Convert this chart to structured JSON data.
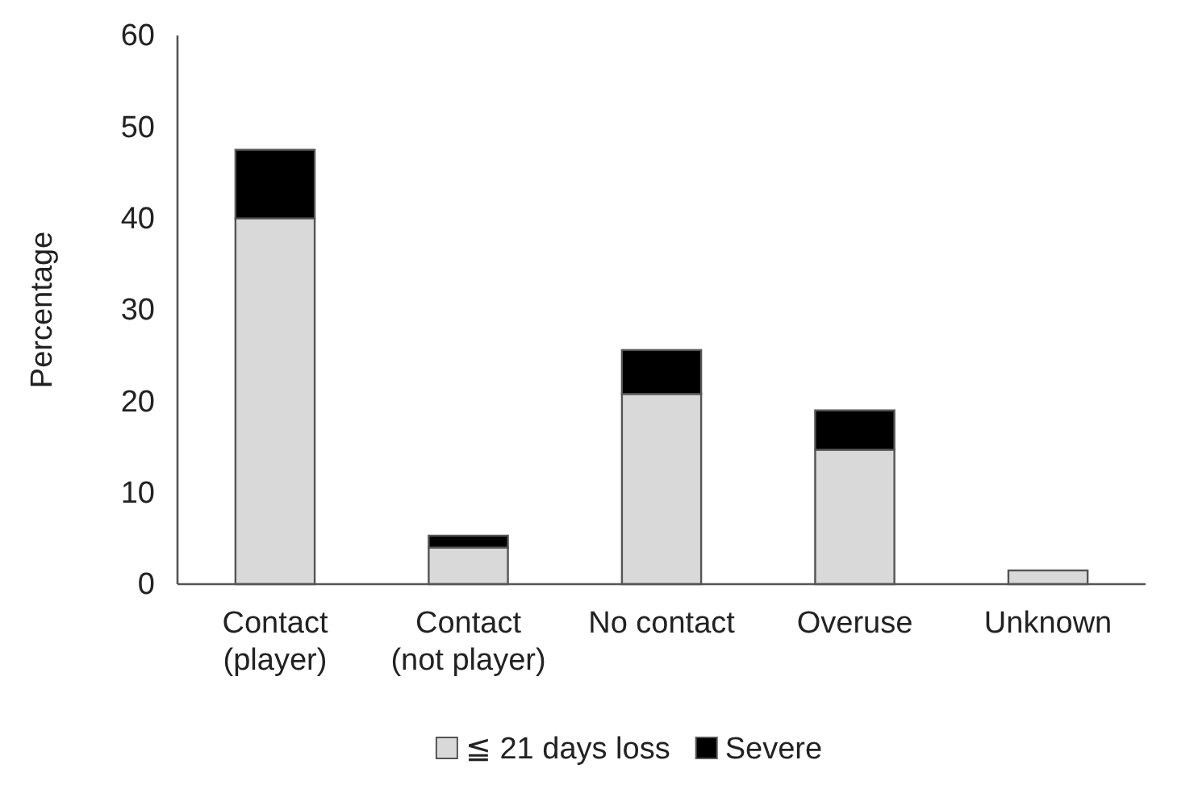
{
  "chart_data": {
    "type": "bar",
    "stacked": true,
    "ylabel": "Percentage",
    "categories": [
      "Contact\n(player)",
      "Contact\n(not player)",
      "No contact",
      "Overuse",
      "Unknown"
    ],
    "series": [
      {
        "name": "≦ 21 days loss",
        "color": "#d9d9d9",
        "values": [
          40,
          4,
          20.8,
          14.7,
          1.5
        ]
      },
      {
        "name": "Severe",
        "color": "#000000",
        "values": [
          7.5,
          1.3,
          4.8,
          4.3,
          0
        ]
      }
    ],
    "ylim": [
      0,
      60
    ],
    "yticks": [
      0,
      10,
      20,
      30,
      40,
      50,
      60
    ],
    "grid": false,
    "legend": "bottom"
  }
}
